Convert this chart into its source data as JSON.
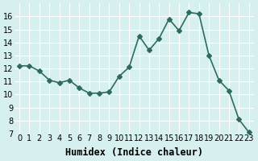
{
  "x": [
    0,
    1,
    2,
    3,
    4,
    5,
    6,
    7,
    8,
    9,
    10,
    11,
    12,
    13,
    14,
    15,
    16,
    17,
    18,
    19,
    20,
    21,
    22,
    23
  ],
  "y": [
    12.2,
    12.2,
    11.8,
    11.1,
    10.9,
    11.1,
    10.5,
    10.1,
    10.1,
    10.2,
    11.4,
    12.1,
    14.5,
    13.4,
    14.3,
    15.8,
    14.9,
    16.3,
    16.2,
    13.0,
    11.1,
    10.3,
    8.1,
    7.1
  ],
  "line_color": "#2e6b5e",
  "marker": "D",
  "marker_size": 3,
  "bg_color": "#d6f0f0",
  "grid_color": "#ffffff",
  "xlabel": "Humidex (Indice chaleur)",
  "ylim": [
    7,
    17
  ],
  "xlim": [
    -0.5,
    23.5
  ],
  "yticks": [
    7,
    8,
    9,
    10,
    11,
    12,
    13,
    14,
    15,
    16
  ],
  "xtick_labels": [
    "0",
    "1",
    "2",
    "3",
    "4",
    "5",
    "6",
    "7",
    "8",
    "9",
    "10",
    "11",
    "12",
    "13",
    "14",
    "15",
    "16",
    "17",
    "18",
    "19",
    "20",
    "21",
    "22",
    "23"
  ],
  "tick_fontsize": 7,
  "xlabel_fontsize": 8.5,
  "linewidth": 1.2
}
